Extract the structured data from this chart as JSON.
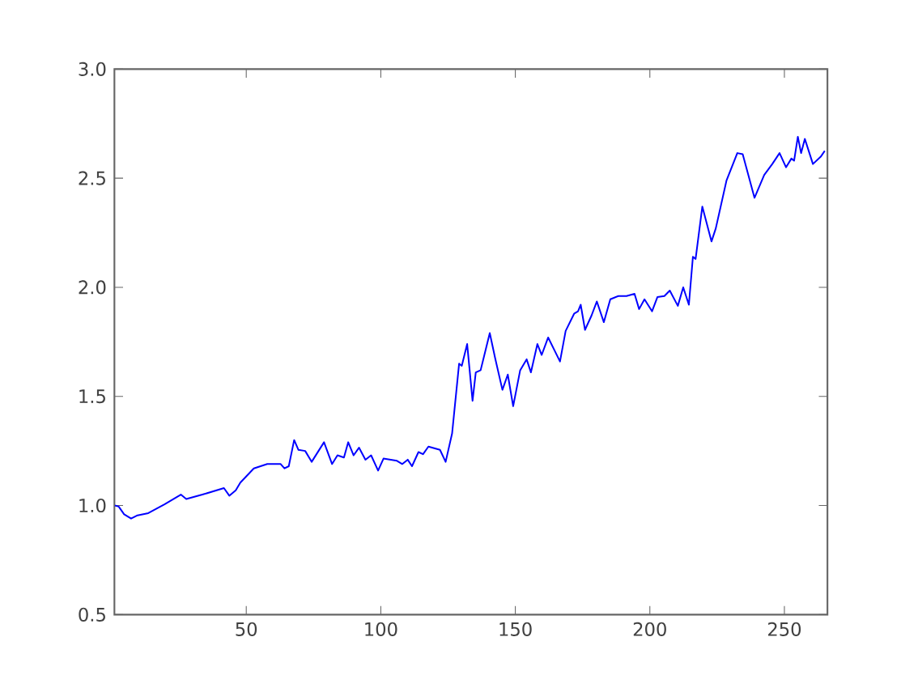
{
  "chart_data": {
    "type": "line",
    "xlim": [
      1,
      266
    ],
    "ylim": [
      0.5,
      3.0
    ],
    "xticks": [
      50,
      100,
      150,
      200,
      250
    ],
    "yticks": [
      0.5,
      {
        "value": 1.0,
        "label": "1.0"
      },
      1.5,
      {
        "value": 2.0,
        "label": "2.0"
      },
      2.5,
      {
        "value": 3.0,
        "label": "3.0"
      }
    ],
    "series": [
      {
        "color": "#0000ff",
        "x": [
          1.2,
          2.6,
          4.6,
          7.2,
          9.6,
          13.6,
          19.6,
          25.7,
          27.7,
          33.7,
          41.7,
          43.7,
          46.1,
          47.8,
          52.8,
          57.8,
          62.8,
          64.2,
          65.8,
          67.8,
          69.4,
          71.9,
          74.3,
          78.9,
          81.9,
          83.9,
          86.3,
          87.9,
          89.9,
          91.9,
          94.3,
          96.4,
          99,
          101,
          106,
          108,
          110,
          111.6,
          114,
          115.7,
          117.7,
          122,
          124.1,
          126.5,
          129.1,
          130.1,
          132.1,
          134.1,
          135.3,
          137.1,
          138.5,
          140.5,
          142.5,
          145.2,
          147.2,
          149.2,
          151.8,
          154.2,
          155.8,
          158.2,
          159.8,
          162.2,
          164.6,
          166.6,
          168.7,
          171.9,
          173.3,
          174.3,
          175.9,
          178.3,
          180.3,
          182.9,
          185.3,
          188.3,
          191.3,
          194.3,
          196,
          198,
          200.8,
          202.8,
          205.4,
          207.4,
          210.4,
          212.4,
          214.5,
          216,
          217,
          219.5,
          222.9,
          224.5,
          228.5,
          232.5,
          234.5,
          238.9,
          242.5,
          245.5,
          248.2,
          250.6,
          252.6,
          253.6,
          255,
          256.2,
          257.6,
          260.6,
          263.6,
          265
        ],
        "values": [
          1.0,
          0.995,
          0.96,
          0.94,
          0.955,
          0.965,
          1.005,
          1.05,
          1.03,
          1.05,
          1.08,
          1.045,
          1.07,
          1.105,
          1.17,
          1.19,
          1.19,
          1.17,
          1.18,
          1.3,
          1.255,
          1.25,
          1.2,
          1.29,
          1.19,
          1.23,
          1.22,
          1.29,
          1.23,
          1.265,
          1.21,
          1.23,
          1.16,
          1.215,
          1.205,
          1.19,
          1.21,
          1.18,
          1.245,
          1.235,
          1.27,
          1.255,
          1.2,
          1.33,
          1.65,
          1.64,
          1.74,
          1.48,
          1.61,
          1.62,
          1.69,
          1.79,
          1.675,
          1.53,
          1.6,
          1.455,
          1.62,
          1.67,
          1.61,
          1.74,
          1.69,
          1.77,
          1.71,
          1.66,
          1.8,
          1.88,
          1.89,
          1.92,
          1.805,
          1.87,
          1.935,
          1.84,
          1.945,
          1.96,
          1.96,
          1.97,
          1.9,
          1.945,
          1.89,
          1.955,
          1.96,
          1.985,
          1.915,
          2.0,
          1.92,
          2.14,
          2.13,
          2.37,
          2.21,
          2.27,
          2.49,
          2.615,
          2.61,
          2.41,
          2.515,
          2.565,
          2.615,
          2.55,
          2.59,
          2.58,
          2.69,
          2.615,
          2.68,
          2.565,
          2.6,
          2.625
        ]
      }
    ]
  }
}
